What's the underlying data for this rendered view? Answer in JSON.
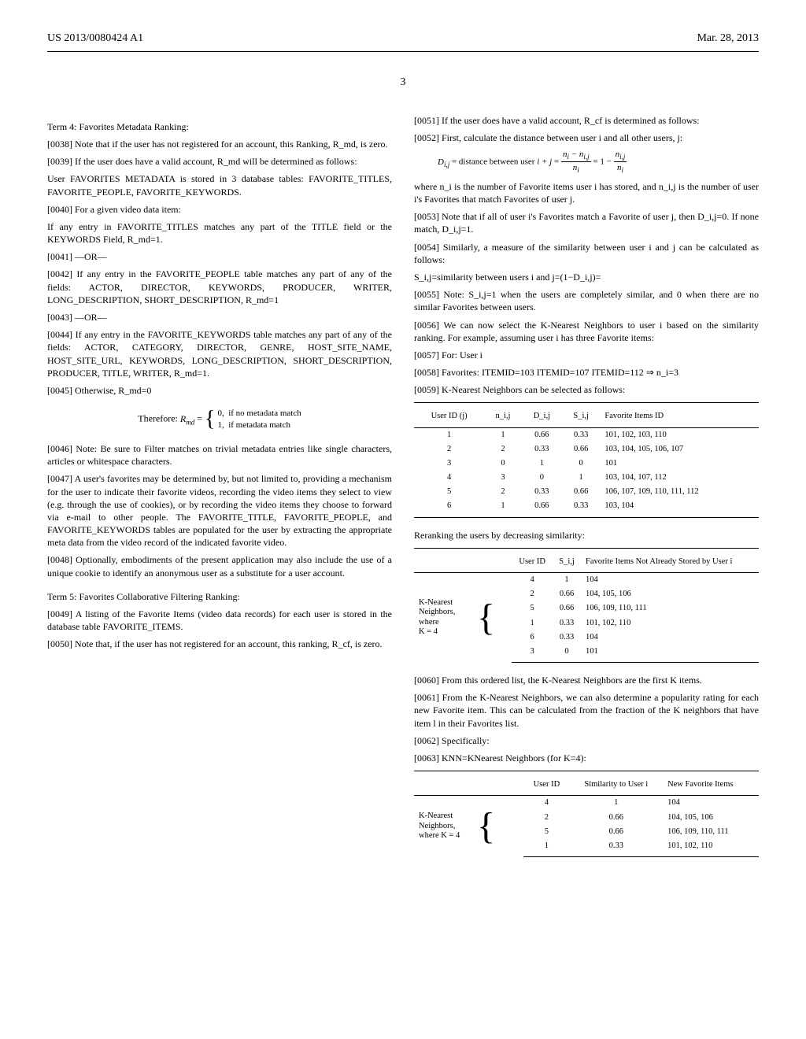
{
  "header": {
    "left": "US 2013/0080424 A1",
    "right": "Mar. 28, 2013",
    "pagenum": "3"
  },
  "left_col": {
    "term4_title": "Term 4: Favorites Metadata Ranking:",
    "p0038": "[0038]  Note that if the user has not registered for an account, this Ranking, R_md, is zero.",
    "p0039": "[0039]  If the user does have a valid account, R_md will be determined as follows:",
    "meta_store": "User FAVORITES METADATA is stored in 3 database tables: FAVORITE_TITLES, FAVORITE_PEOPLE, FAVORITE_KEYWORDS.",
    "p0040": "[0040]  For a given video data item:",
    "fav_titles": "If any entry in FAVORITE_TITLES matches any part of the TITLE field or the KEYWORDS Field, R_md=1.",
    "p0041": "[0041]  —OR—",
    "p0042": "[0042]  If any entry in the FAVORITE_PEOPLE table matches any part of any of the fields: ACTOR, DIRECTOR, KEYWORDS, PRODUCER, WRITER, LONG_DESCRIPTION, SHORT_DESCRIPTION, R_md=1",
    "p0043": "[0043]  —OR—",
    "p0044": "[0044]  If any entry in the FAVORITE_KEYWORDS table matches any part of any of the fields: ACTOR, CATEGORY, DIRECTOR, GENRE, HOST_SITE_NAME, HOST_SITE_URL, KEYWORDS, LONG_DESCRIPTION, SHORT_DESCRIPTION, PRODUCER, TITLE, WRITER, R_md=1.",
    "p0045": "[0045]  Otherwise, R_md=0",
    "therefore_formula": "Therefore: R_md = { 0, if no metadata match; 1, if metadata match }",
    "p0046": "[0046]  Note: Be sure to Filter matches on trivial metadata entries like single characters, articles or whitespace characters.",
    "p0047": "[0047]  A user's favorites may be determined by, but not limited to, providing a mechanism for the user to indicate their favorite videos, recording the video items they select to view (e.g. through the use of cookies), or by recording the video items they choose to forward via e-mail to other people. The FAVORITE_TITLE, FAVORITE_PEOPLE, and FAVORITE_KEYWORDS tables are populated for the user by extracting the appropriate meta data from the video record of the indicated favorite video.",
    "p0048": "[0048]  Optionally, embodiments of the present application may also include the use of a unique cookie to identify an anonymous user as a substitute for a user account.",
    "term5_title": "Term 5: Favorites Collaborative Filtering Ranking:",
    "p0049": "[0049]  A listing of the Favorite Items (video data records) for each user is stored in the database table FAVORITE_ITEMS.",
    "p0050": "[0050]  Note that, if the user has not registered for an account, this ranking, R_cf, is zero."
  },
  "right_col": {
    "p0051": "[0051]  If the user does have a valid account, R_cf is determined as follows:",
    "p0052": "[0052]  First, calculate the distance between user i and all other users, j:",
    "dist_formula": "D_i,j = distance between user i + j = (n_i − n_i,j) / n_i = 1 − n_i,j / n_i",
    "dist_where": "where n_i is the number of Favorite items user i has stored, and n_i,j is the number of user i's Favorites that match Favorites of user j.",
    "p0053": "[0053]  Note that if all of user i's Favorites match a Favorite of user j, then D_i,j=0. If none match, D_i,j=1.",
    "p0054": "[0054]  Similarly, a measure of the similarity between user i and j can be calculated as follows:",
    "sim_line": "S_i,j=similarity between users i and j=(1−D_i,j)=",
    "p0055": "[0055]  Note: S_i,j=1 when the users are completely similar, and 0 when there are no similar Favorites between users.",
    "p0056": "[0056]  We can now select the K-Nearest Neighbors to user i based on the similarity ranking. For example, assuming user i has three Favorite items:",
    "p0057": "[0057]  For: User i",
    "p0058": "[0058]  Favorites:   ITEMID=103   ITEMID=107   ITEMID=112 ⇒ n_i=3",
    "p0059": "[0059]  K-Nearest Neighbors can be selected as follows:",
    "table1": {
      "columns": [
        "User ID (j)",
        "n_i,j",
        "D_i,j",
        "S_i,j",
        "Favorite Items ID"
      ],
      "rows": [
        [
          "1",
          "1",
          "0.66",
          "0.33",
          "101, 102, 103, 110"
        ],
        [
          "2",
          "2",
          "0.33",
          "0.66",
          "103, 104, 105, 106, 107"
        ],
        [
          "3",
          "0",
          "1",
          "0",
          "101"
        ],
        [
          "4",
          "3",
          "0",
          "1",
          "103, 104, 107, 112"
        ],
        [
          "5",
          "2",
          "0.33",
          "0.66",
          "106, 107, 109, 110, 111, 112"
        ],
        [
          "6",
          "1",
          "0.66",
          "0.33",
          "103, 104"
        ]
      ]
    },
    "rerank_label": "Reranking the users by decreasing similarity:",
    "table2": {
      "columns": [
        "",
        "User ID",
        "S_i,j",
        "Favorite Items Not Already Stored by User i"
      ],
      "label_lines": [
        "K-Nearest",
        "Neighbors,",
        "where",
        "K = 4"
      ],
      "rows": [
        [
          "4",
          "1",
          "104"
        ],
        [
          "2",
          "0.66",
          "104, 105, 106"
        ],
        [
          "5",
          "0.66",
          "106, 109, 110, 111"
        ],
        [
          "1",
          "0.33",
          "101, 102, 110"
        ],
        [
          "6",
          "0.33",
          "104"
        ],
        [
          "3",
          "0",
          "101"
        ]
      ]
    },
    "p0060": "[0060]  From this ordered list, the K-Nearest Neighbors are the first K items.",
    "p0061": "[0061]  From the K-Nearest Neighbors, we can also determine a popularity rating for each new Favorite item. This can be calculated from the fraction of the K neighbors that have item l in their Favorites list.",
    "p0062": "[0062]  Specifically:",
    "p0063": "[0063]  KNN=KNearest Neighbors (for K=4):",
    "table3": {
      "columns": [
        "",
        "User ID",
        "Similarity to User i",
        "New Favorite Items"
      ],
      "label_lines": [
        "K-Nearest",
        "Neighbors,",
        "where K = 4"
      ],
      "rows": [
        [
          "4",
          "1",
          "104"
        ],
        [
          "2",
          "0.66",
          "104, 105, 106"
        ],
        [
          "5",
          "0.66",
          "106, 109, 110, 111"
        ],
        [
          "1",
          "0.33",
          "101, 102, 110"
        ]
      ]
    }
  }
}
